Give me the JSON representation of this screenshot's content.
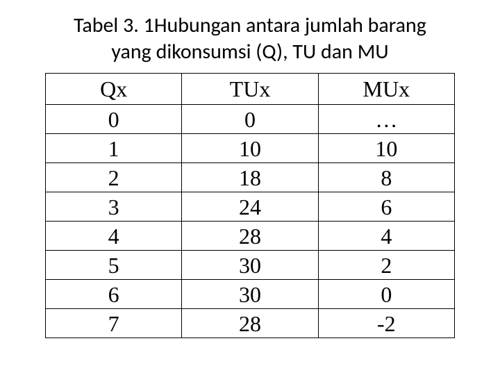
{
  "title_line1": "Tabel 3. 1Hubungan antara jumlah barang",
  "title_line2": "yang dikonsumsi (Q), TU dan MU",
  "table": {
    "columns": [
      "Qx",
      "TUx",
      "MUx"
    ],
    "rows": [
      [
        "0",
        "0",
        "…"
      ],
      [
        "1",
        "10",
        "10"
      ],
      [
        "2",
        "18",
        "8"
      ],
      [
        "3",
        "24",
        "6"
      ],
      [
        "4",
        "28",
        "4"
      ],
      [
        "5",
        "30",
        "2"
      ],
      [
        "6",
        "30",
        "0"
      ],
      [
        "7",
        "28",
        "-2"
      ]
    ],
    "border_color": "#000000",
    "background_color": "#ffffff",
    "header_fontsize": 32,
    "cell_fontsize": 32,
    "font_family_header": "Times New Roman",
    "font_family_body": "Times New Roman"
  },
  "title_font_family": "Calibri",
  "title_fontsize": 30
}
